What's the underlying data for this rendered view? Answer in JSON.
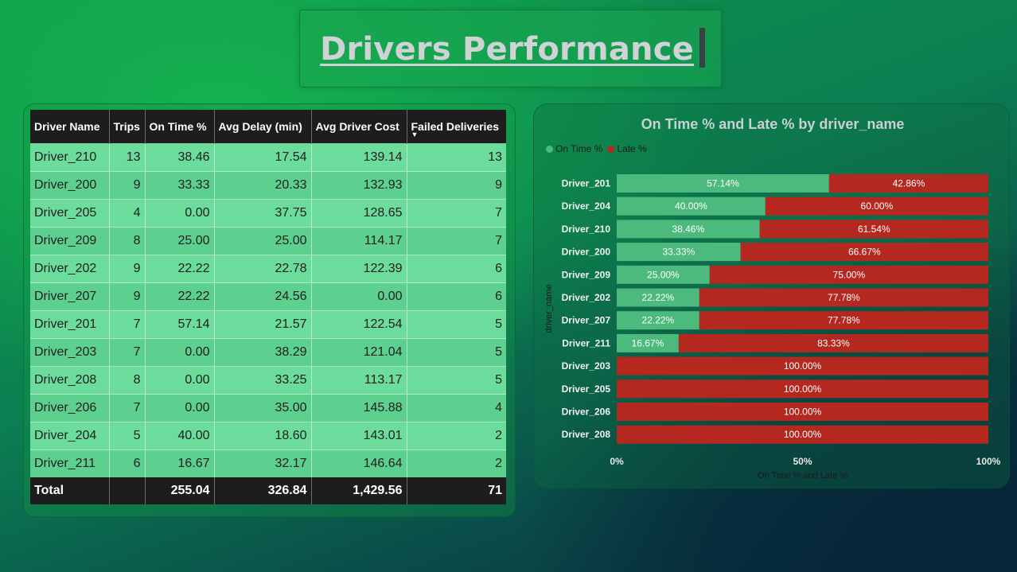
{
  "page": {
    "title": "Drivers Performance"
  },
  "table": {
    "columns": [
      "Driver Name",
      "Trips",
      "On Time %",
      "Avg Delay (min)",
      "Avg Driver Cost",
      "Failed Deliveries"
    ],
    "sort_indicator": "▼",
    "rows": [
      {
        "driver": "Driver_210",
        "trips": "13",
        "on_time": "38.46",
        "avg_delay": "17.54",
        "avg_cost": "139.14",
        "failed": "13"
      },
      {
        "driver": "Driver_200",
        "trips": "9",
        "on_time": "33.33",
        "avg_delay": "20.33",
        "avg_cost": "132.93",
        "failed": "9"
      },
      {
        "driver": "Driver_205",
        "trips": "4",
        "on_time": "0.00",
        "avg_delay": "37.75",
        "avg_cost": "128.65",
        "failed": "7"
      },
      {
        "driver": "Driver_209",
        "trips": "8",
        "on_time": "25.00",
        "avg_delay": "25.00",
        "avg_cost": "114.17",
        "failed": "7"
      },
      {
        "driver": "Driver_202",
        "trips": "9",
        "on_time": "22.22",
        "avg_delay": "22.78",
        "avg_cost": "122.39",
        "failed": "6"
      },
      {
        "driver": "Driver_207",
        "trips": "9",
        "on_time": "22.22",
        "avg_delay": "24.56",
        "avg_cost": "0.00",
        "failed": "6"
      },
      {
        "driver": "Driver_201",
        "trips": "7",
        "on_time": "57.14",
        "avg_delay": "21.57",
        "avg_cost": "122.54",
        "failed": "5"
      },
      {
        "driver": "Driver_203",
        "trips": "7",
        "on_time": "0.00",
        "avg_delay": "38.29",
        "avg_cost": "121.04",
        "failed": "5"
      },
      {
        "driver": "Driver_208",
        "trips": "8",
        "on_time": "0.00",
        "avg_delay": "33.25",
        "avg_cost": "113.17",
        "failed": "5"
      },
      {
        "driver": "Driver_206",
        "trips": "7",
        "on_time": "0.00",
        "avg_delay": "35.00",
        "avg_cost": "145.88",
        "failed": "4"
      },
      {
        "driver": "Driver_204",
        "trips": "5",
        "on_time": "40.00",
        "avg_delay": "18.60",
        "avg_cost": "143.01",
        "failed": "2"
      },
      {
        "driver": "Driver_211",
        "trips": "6",
        "on_time": "16.67",
        "avg_delay": "32.17",
        "avg_cost": "146.64",
        "failed": "2"
      }
    ],
    "total": {
      "label": "Total",
      "trips": "",
      "on_time": "255.04",
      "avg_delay": "326.84",
      "avg_cost": "1,429.56",
      "failed": "71"
    }
  },
  "chart_data": {
    "type": "bar",
    "orientation": "horizontal",
    "stacked": "100%",
    "title": "On Time % and Late % by driver_name",
    "xlabel": "On Time % and Late %",
    "ylabel": "driver_name",
    "xlim": [
      0,
      100
    ],
    "x_ticks": [
      "0%",
      "50%",
      "100%"
    ],
    "legend_position": "top-left",
    "categories": [
      "Driver_201",
      "Driver_204",
      "Driver_210",
      "Driver_200",
      "Driver_209",
      "Driver_202",
      "Driver_207",
      "Driver_211",
      "Driver_203",
      "Driver_205",
      "Driver_206",
      "Driver_208"
    ],
    "series": [
      {
        "name": "On Time %",
        "color": "#4cba7d",
        "values": [
          57.14,
          40.0,
          38.46,
          33.33,
          25.0,
          22.22,
          22.22,
          16.67,
          0,
          0,
          0,
          0
        ]
      },
      {
        "name": "Late %",
        "color": "#b5281f",
        "values": [
          42.86,
          60.0,
          61.54,
          66.67,
          75.0,
          77.78,
          77.78,
          83.33,
          100.0,
          100.0,
          100.0,
          100.0
        ]
      }
    ]
  }
}
